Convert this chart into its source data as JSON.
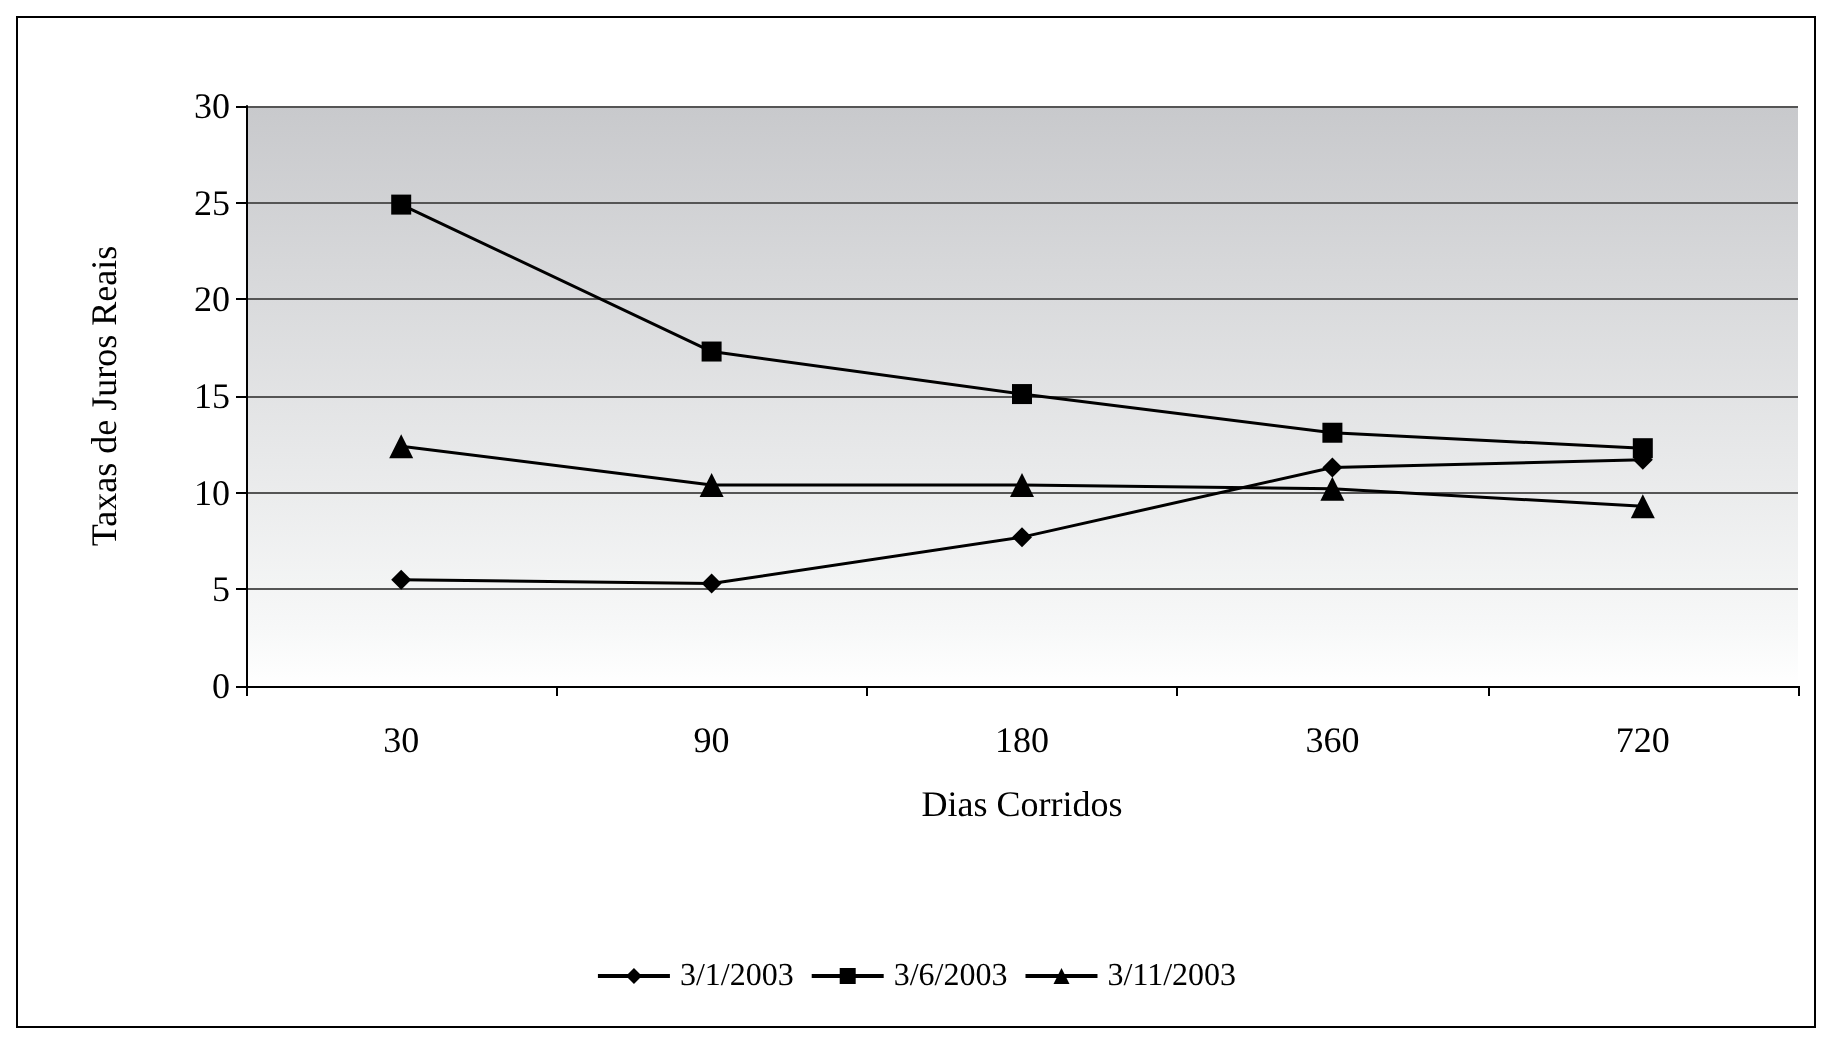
{
  "chart_data": {
    "type": "line",
    "xlabel": "Dias Corridos",
    "ylabel": "Taxas de Juros Reais",
    "categories": [
      "30",
      "90",
      "180",
      "360",
      "720"
    ],
    "series": [
      {
        "name": "3/1/2003",
        "color": "#000000",
        "marker": "diamond",
        "values": [
          5.5,
          5.3,
          7.7,
          11.3,
          11.7
        ]
      },
      {
        "name": "3/6/2003",
        "color": "#000000",
        "marker": "square",
        "values": [
          24.9,
          17.3,
          15.1,
          13.1,
          12.3
        ]
      },
      {
        "name": "3/11/2003",
        "color": "#000000",
        "marker": "triangle",
        "values": [
          12.4,
          10.4,
          10.4,
          10.2,
          9.3
        ]
      }
    ],
    "ylim": [
      0,
      30
    ],
    "yticks": [
      0,
      5,
      10,
      15,
      20,
      25,
      30
    ],
    "grid": "y",
    "legend": "bottom",
    "line_style": "solid"
  }
}
